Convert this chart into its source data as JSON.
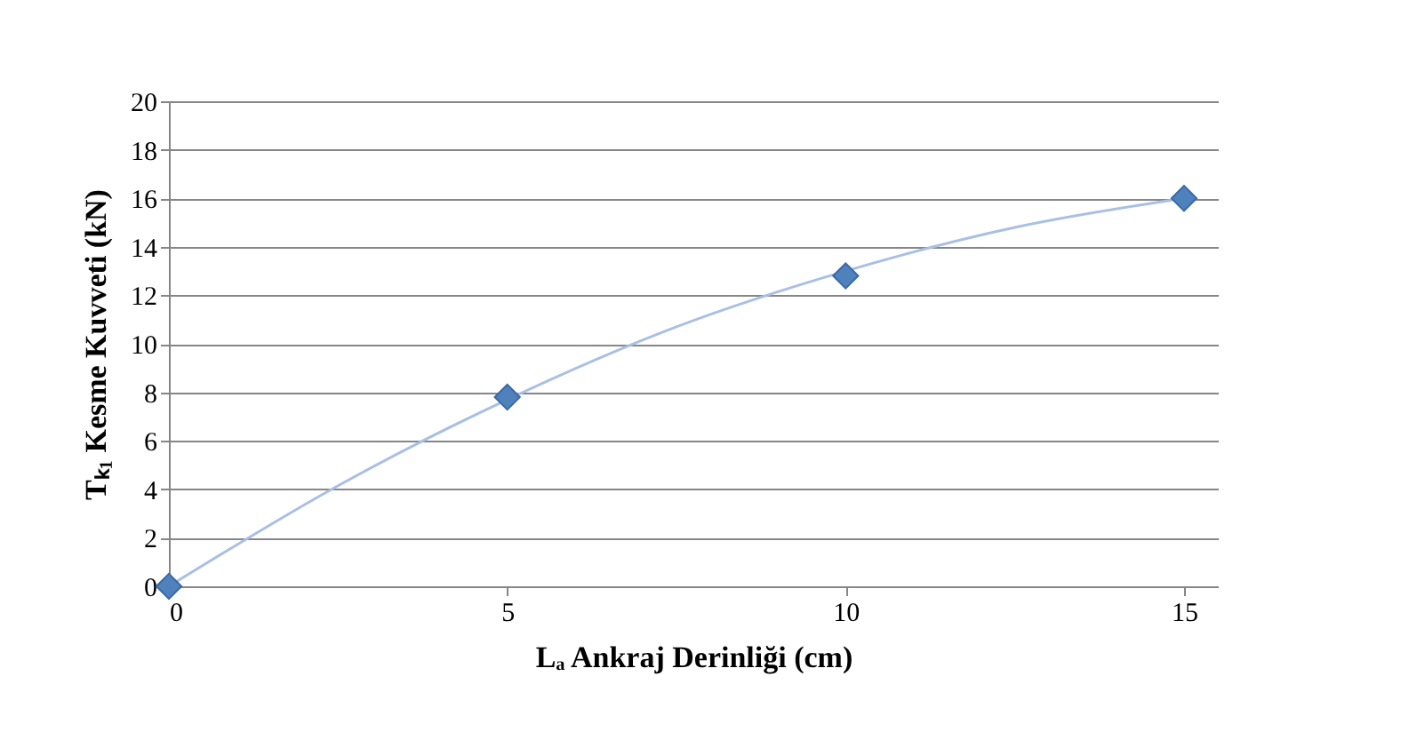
{
  "chart_data": {
    "type": "scatter",
    "xlabel": "Lₐ Ankraj Derinliği (cm)",
    "ylabel": "Tₖ₁ Kesme Kuvveti (kN)",
    "x": [
      0,
      5,
      10,
      15
    ],
    "series": [
      {
        "color": "#4f81bd",
        "marker": "diamond",
        "values": [
          0,
          7.8,
          12.8,
          16
        ]
      },
      {
        "type": "line",
        "color": "#a9bfe3",
        "marker": "none",
        "line_style": "solid",
        "x": [
          0,
          2.5,
          5,
          7.5,
          10,
          12.5,
          15
        ],
        "values": [
          0,
          4.15,
          7.7,
          10.7,
          13.0,
          14.8,
          16
        ]
      }
    ],
    "xlim": [
      0,
      15.5
    ],
    "xticks": [
      0,
      5,
      10,
      15
    ],
    "ylim": [
      0,
      20
    ],
    "yticks": [
      0,
      2,
      4,
      6,
      8,
      10,
      12,
      14,
      16,
      18,
      20
    ],
    "grid": "y"
  }
}
